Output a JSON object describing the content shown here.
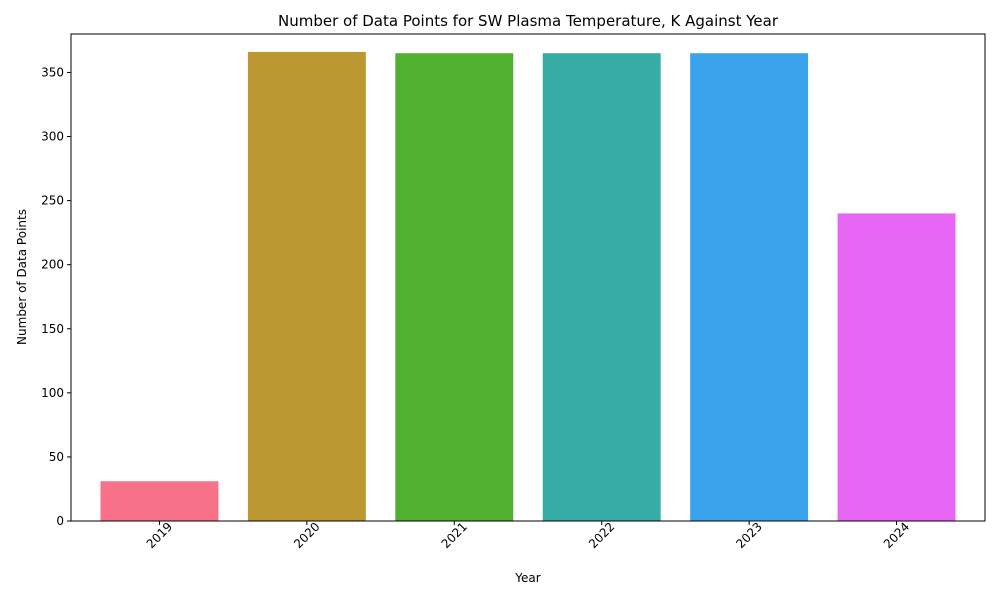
{
  "chart_data": {
    "type": "bar",
    "title": "Number of Data Points for SW Plasma Temperature, K Against Year",
    "xlabel": "Year",
    "ylabel": "Number of Data Points",
    "categories": [
      "2019",
      "2020",
      "2021",
      "2022",
      "2023",
      "2024"
    ],
    "values": [
      31,
      366,
      365,
      365,
      365,
      240
    ],
    "colors": [
      "#f77189",
      "#bb9832",
      "#50b131",
      "#36ada4",
      "#3ba3ec",
      "#e866f4"
    ],
    "ylim": [
      0,
      380
    ],
    "yticks": [
      0,
      50,
      100,
      150,
      200,
      250,
      300,
      350
    ],
    "xtick_rotation": 45,
    "grid": false,
    "legend": "none"
  }
}
